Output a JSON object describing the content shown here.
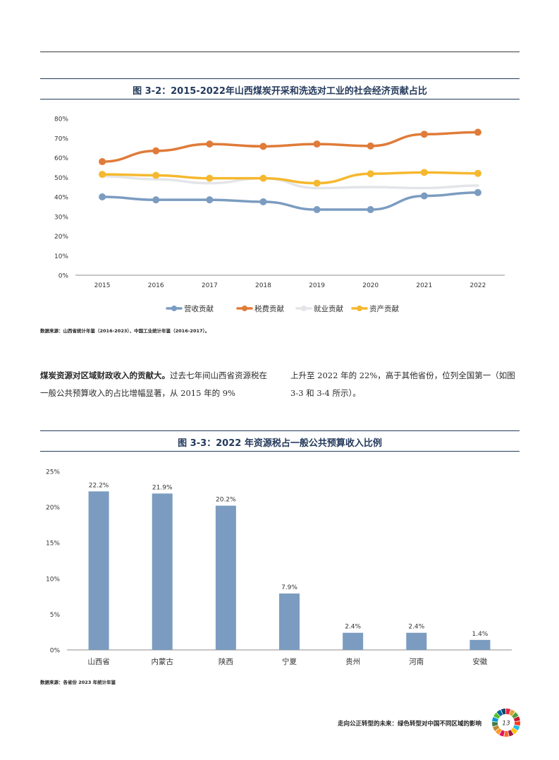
{
  "figure1": {
    "title": "图 3-2：2015-2022年山西煤炭开采和洗选对工业的社会经济贡献占比",
    "source": "数据来源：山西省统计年鉴（2016-2023）、中国工业统计年鉴（2016-2017）。"
  },
  "figure2": {
    "title": "图 3-3：2022 年资源税占一般公共预算收入比例",
    "source": "数据来源：各省份 2023 年统计年鉴"
  },
  "paragraph": {
    "left_bold": "煤炭资源对区域财政收入的贡献大。",
    "left_rest": "过去七年间山西省资源税在一般公共预算收入的占比增幅显著，从 2015 年的 9%",
    "right": "上升至 2022 年的 22%，高于其他省份，位列全国第一（如图 3-3 和 3-4 所示）。"
  },
  "footer": {
    "text": "走向公正转型的未来：绿色转型对中国不同区域的影响",
    "page_number": "13"
  },
  "chart_data": [
    {
      "type": "line",
      "x": [
        "2015",
        "2016",
        "2017",
        "2018",
        "2019",
        "2020",
        "2021",
        "2022"
      ],
      "ylim": [
        0,
        80
      ],
      "yticks": [
        "0%",
        "10%",
        "20%",
        "30%",
        "40%",
        "50%",
        "60%",
        "70%",
        "80%"
      ],
      "grid": false,
      "legend": "bottom",
      "series": [
        {
          "name": "营收贡献",
          "color": "#7b9cc0",
          "values": [
            40,
            38.5,
            38.5,
            37.5,
            33.5,
            33.5,
            40.5,
            42.2
          ],
          "markers": true
        },
        {
          "name": "税费贡献",
          "color": "#e07b39",
          "values": [
            58,
            63.5,
            67,
            65.8,
            67,
            66,
            72,
            73
          ],
          "markers": true
        },
        {
          "name": "就业贡献",
          "color": "#e3e5e8",
          "values": [
            50.5,
            49,
            47,
            49.5,
            44.5,
            45,
            44.5,
            45.8
          ],
          "markers": false
        },
        {
          "name": "资产贡献",
          "color": "#f5b82e",
          "values": [
            51.5,
            51,
            49.5,
            49.5,
            47,
            51.8,
            52.5,
            52
          ],
          "markers": true
        }
      ]
    },
    {
      "type": "bar",
      "categories": [
        "山西省",
        "内蒙古",
        "陕西",
        "宁夏",
        "贵州",
        "河南",
        "安徽"
      ],
      "values": [
        22.2,
        21.9,
        20.2,
        7.9,
        2.4,
        2.4,
        1.4
      ],
      "labels": [
        "22.2%",
        "21.9%",
        "20.2%",
        "7.9%",
        "2.4%",
        "2.4%",
        "1.4%"
      ],
      "ylim": [
        0,
        25
      ],
      "yticks": [
        "0%",
        "5%",
        "10%",
        "15%",
        "20%",
        "25%"
      ],
      "color": "#7b9cc0",
      "grid": false
    }
  ]
}
